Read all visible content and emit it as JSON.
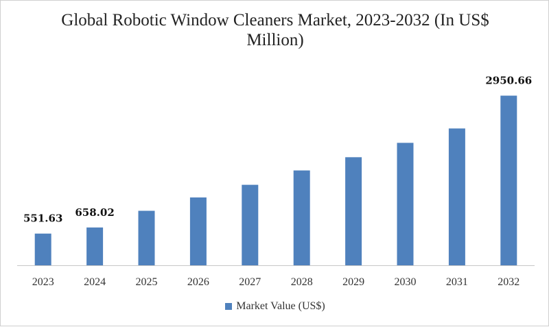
{
  "chart_data": {
    "type": "bar",
    "title": "Global Robotic Window Cleaners Market, 2023-2032 (In US$ Million)",
    "categories": [
      "2023",
      "2024",
      "2025",
      "2026",
      "2027",
      "2028",
      "2029",
      "2030",
      "2031",
      "2032"
    ],
    "series": [
      {
        "name": "Market Value (US$)",
        "values": [
          551.63,
          658.02,
          948,
          1180,
          1400,
          1650,
          1880,
          2130,
          2380,
          2950.66
        ]
      }
    ],
    "data_labels": [
      {
        "index": 0,
        "text": "551.63"
      },
      {
        "index": 1,
        "text": "658.02"
      },
      {
        "index": 9,
        "text": "2950.66"
      }
    ],
    "ylim": [
      0,
      3100
    ],
    "grid": false,
    "legend_position": "bottom",
    "bar_color": "#4f81bd",
    "axis_color": "#c6c6c6"
  }
}
